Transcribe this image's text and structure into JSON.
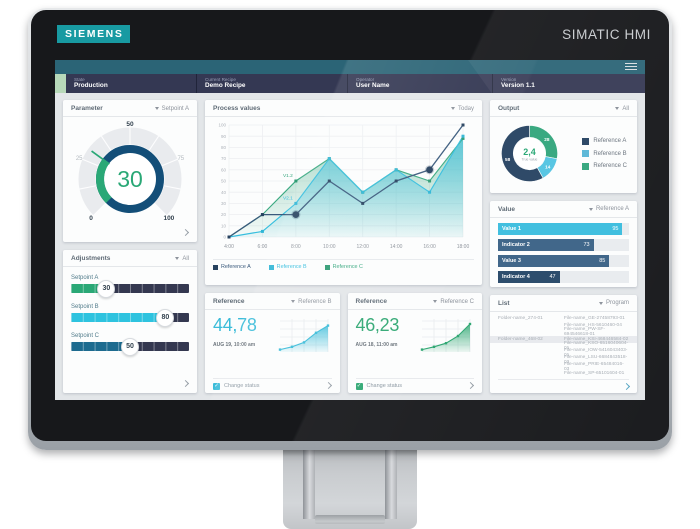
{
  "device": {
    "brand": "SIEMENS",
    "product": "SIMATIC HMI"
  },
  "status_bar": {
    "items": [
      {
        "label": "State",
        "value": "Production"
      },
      {
        "label": "Current Recipe",
        "value": "Demo Recipe"
      },
      {
        "label": "Operator",
        "value": "User Name"
      },
      {
        "label": "Version",
        "value": "Version 1.1"
      }
    ]
  },
  "cards": {
    "parameter": {
      "title": "Parameter",
      "dropdown": "Setpoint A"
    },
    "adjustments": {
      "title": "Adjustments",
      "dropdown": "All"
    },
    "process": {
      "title": "Process values",
      "dropdown": "Today"
    },
    "output": {
      "title": "Output",
      "dropdown": "All"
    },
    "value": {
      "title": "Value",
      "dropdown": "Reference A"
    },
    "list": {
      "title": "List",
      "dropdown": "Program",
      "folders": [
        "Folder-name_274-01",
        "Folder-name_468-02"
      ],
      "files": [
        "File-name_GE-27458793-01",
        "File-name_HS-5610460-04",
        "File-name_PW-SF-694546618-01",
        "File-name_KSI-468446584-02",
        "File-name_KSO-6516040604-01",
        "File-name_IOW-5416043403-01",
        "File-name_LSU-6684843518-02",
        "File-name_PRIE-65484016-03",
        "File-name_SP-65101604-01"
      ],
      "highlighted_row": 3
    },
    "reference_b": {
      "title": "Reference",
      "dropdown": "Reference B",
      "value": "44,78",
      "timestamp": "AUG 19, 10:00 am",
      "checkbox_label": "Change status",
      "accent": "#3bbcd9"
    },
    "reference_c": {
      "title": "Reference",
      "dropdown": "Reference C",
      "value": "46,23",
      "timestamp": "AUG 18, 11:00 am",
      "checkbox_label": "Change status",
      "accent": "#31a874"
    }
  },
  "chart_data": [
    {
      "id": "process",
      "type": "area",
      "title": "Process values",
      "x": [
        "4:00",
        "6:00",
        "8:00",
        "10:00",
        "12:00",
        "14:00",
        "16:00",
        "18:00"
      ],
      "ylim": [
        0,
        100
      ],
      "ytick_step": 10,
      "grid": true,
      "legend_position": "bottom",
      "series": [
        {
          "name": "Reference A",
          "kind": "line",
          "color": "#3a5a7c",
          "marker_color": "#27425f",
          "values": [
            0,
            20,
            20,
            50,
            30,
            50,
            60,
            100
          ],
          "emphasized_points": [
            2,
            6
          ]
        },
        {
          "name": "Reference B",
          "kind": "area",
          "color": "#36bede",
          "marker_color": "#2fb6d6",
          "values": [
            0,
            5,
            30,
            70,
            40,
            60,
            40,
            90
          ]
        },
        {
          "name": "Reference C",
          "kind": "area",
          "color": "#3aa981",
          "marker_color": "#2f9b73",
          "values": [
            0,
            20,
            50,
            70,
            40,
            60,
            50,
            88
          ]
        }
      ],
      "annotations": [
        {
          "text": "V1.2",
          "x_index": 2,
          "y": 50,
          "color": "#3aa981"
        },
        {
          "text": "V2.1",
          "x_index": 2,
          "y": 30,
          "color": "#36bede"
        }
      ]
    },
    {
      "id": "gauge",
      "type": "gauge",
      "min": 0,
      "max": 100,
      "value": 30,
      "tick_labels": [
        0,
        25,
        50,
        75,
        100
      ],
      "value_color": "#2aa876",
      "ring_color": "#134e78"
    },
    {
      "id": "output_donut",
      "type": "pie",
      "center_value": "2,4",
      "center_label": "True value",
      "segments": [
        {
          "label": "Reference C",
          "value": 28,
          "color": "#3aa981"
        },
        {
          "label": "Reference B",
          "value": 14,
          "color": "#59c6e3"
        },
        {
          "label": "Reference A",
          "value": 58,
          "color": "#2f4a68"
        }
      ],
      "legend": [
        {
          "label": "Reference A",
          "color": "#2f4a68"
        },
        {
          "label": "Reference B",
          "color": "#5fb9d8"
        },
        {
          "label": "Reference C",
          "color": "#3aa981"
        }
      ]
    },
    {
      "id": "value_bars",
      "type": "bar",
      "xlim": [
        0,
        100
      ],
      "bars": [
        {
          "label": "Value 1",
          "value": 95,
          "color": "#41bfdf"
        },
        {
          "label": "Indicator 2",
          "value": 73,
          "color": "#41678a"
        },
        {
          "label": "Value 3",
          "value": 85,
          "color": "#41678a"
        },
        {
          "label": "Indicator 4",
          "value": 47,
          "color": "#2d4d6d"
        }
      ]
    },
    {
      "id": "sliders",
      "type": "slider-group",
      "min": 0,
      "max": 100,
      "sliders": [
        {
          "label": "Setpoint A",
          "value": 30,
          "color": "#2aa876"
        },
        {
          "label": "Setpoint B",
          "value": 80,
          "color": "#2ec3df"
        },
        {
          "label": "Setpoint C",
          "value": 50,
          "color": "#1d6b8f"
        }
      ]
    },
    {
      "id": "spark_b",
      "type": "area",
      "ylim": [
        0,
        80
      ],
      "values": [
        6,
        13,
        24,
        48,
        66
      ],
      "color": "#3bbcd9"
    },
    {
      "id": "spark_c",
      "type": "area",
      "ylim": [
        0,
        80
      ],
      "values": [
        6,
        13,
        22,
        40,
        70
      ],
      "color": "#31a874"
    }
  ]
}
